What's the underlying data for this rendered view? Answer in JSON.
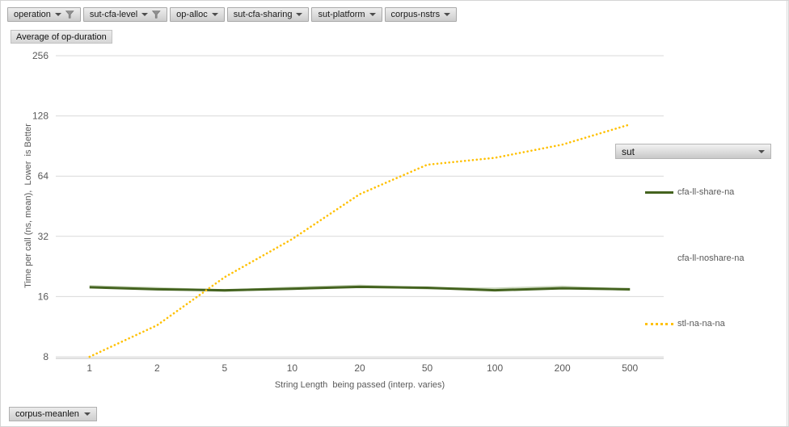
{
  "field_buttons": {
    "top": [
      {
        "label": "operation",
        "filtered": true
      },
      {
        "label": "sut-cfa-level",
        "filtered": true
      },
      {
        "label": "op-alloc",
        "filtered": false
      },
      {
        "label": "sut-cfa-sharing",
        "filtered": false
      },
      {
        "label": "sut-platform",
        "filtered": false
      },
      {
        "label": "corpus-nstrs",
        "filtered": false
      }
    ],
    "value_button_label": "Average of op-duration",
    "legend_field_label": "sut",
    "bottom_button_label": "corpus-meanlen"
  },
  "chart_data": {
    "type": "line",
    "x_scale": "log-categories",
    "y_scale": "log2",
    "categories": [
      1,
      2,
      5,
      10,
      20,
      50,
      100,
      200,
      500
    ],
    "y_ticks": [
      256,
      128,
      64,
      32,
      16,
      8
    ],
    "ylim": [
      8,
      256
    ],
    "xlabel": "String Length  being passed (interp. varies)",
    "ylabel": "Time per call (ns, mean),  Lower  is Better",
    "grid": true,
    "colors": {
      "gridline": "#d9d9d9",
      "axis_line": "#bfbfbf",
      "tick_text": "#595959"
    },
    "series": [
      {
        "name": "cfa-ll-noshare-na",
        "color": "#c9d5bc",
        "style": "solid",
        "width": 3,
        "values": [
          18.0,
          17.6,
          17.1,
          17.7,
          18.1,
          17.6,
          17.5,
          17.9,
          17.3
        ]
      },
      {
        "name": "cfa-ll-share-na",
        "color": "#44631f",
        "style": "solid",
        "width": 3,
        "values": [
          17.8,
          17.4,
          17.2,
          17.5,
          17.9,
          17.7,
          17.2,
          17.6,
          17.4
        ]
      },
      {
        "name": "stl-na-na-na",
        "color": "#ffc000",
        "style": "dotted",
        "width": 2.6,
        "values": [
          8,
          11.5,
          20,
          31,
          52,
          73,
          79,
          92,
          116
        ]
      }
    ],
    "legend": {
      "position": "right",
      "items": [
        {
          "label": "cfa-ll-share-na",
          "swatch": "solid-green"
        },
        {
          "label": "cfa-ll-noshare-na",
          "swatch": "none"
        },
        {
          "label": "stl-na-na-na",
          "swatch": "dotted-yellow"
        }
      ]
    }
  }
}
